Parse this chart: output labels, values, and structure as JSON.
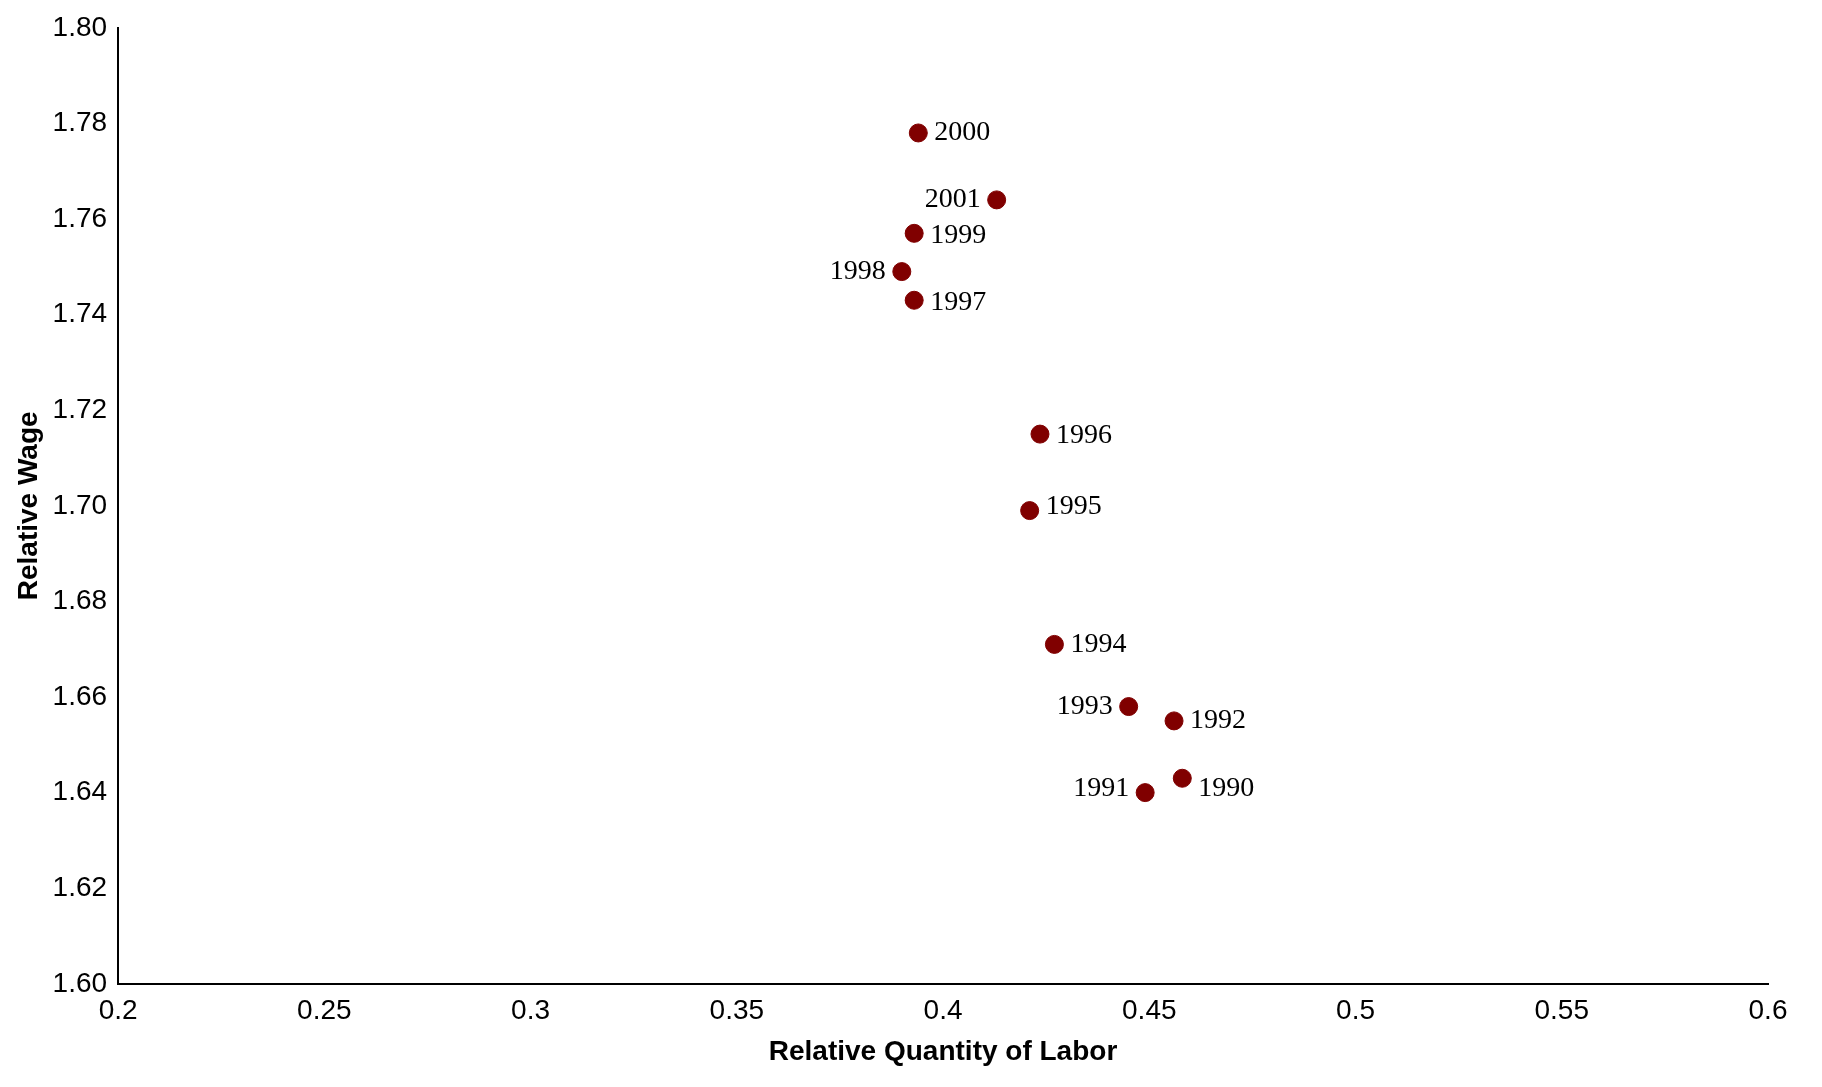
{
  "chart_data": {
    "type": "scatter",
    "xlabel": "Relative Quantity of Labor",
    "ylabel": "Relative Wage",
    "x": [
      0.458,
      0.449,
      0.456,
      0.445,
      0.427,
      0.421,
      0.4235,
      0.393,
      0.39,
      0.393,
      0.394,
      0.413
    ],
    "values": [
      1.643,
      1.64,
      1.655,
      1.658,
      1.671,
      1.699,
      1.715,
      1.743,
      1.749,
      1.757,
      1.778,
      1.764
    ],
    "annotations": [
      {
        "text": "1990",
        "x": 0.458,
        "y": 1.643
      },
      {
        "text": "1991",
        "x": 0.449,
        "y": 1.64
      },
      {
        "text": "1992",
        "x": 0.456,
        "y": 1.655
      },
      {
        "text": "1993",
        "x": 0.445,
        "y": 1.658
      },
      {
        "text": "1994",
        "x": 0.427,
        "y": 1.671
      },
      {
        "text": "1995",
        "x": 0.421,
        "y": 1.699
      },
      {
        "text": "1996",
        "x": 0.4235,
        "y": 1.715
      },
      {
        "text": "1997",
        "x": 0.393,
        "y": 1.743
      },
      {
        "text": "1998",
        "x": 0.39,
        "y": 1.749
      },
      {
        "text": "1999",
        "x": 0.393,
        "y": 1.757
      },
      {
        "text": "2000",
        "x": 0.394,
        "y": 1.778
      },
      {
        "text": "2001",
        "x": 0.413,
        "y": 1.764
      }
    ],
    "color": "#800000",
    "marker": "circle",
    "grid": false,
    "legend": false,
    "xlim": [
      0.2,
      0.6
    ],
    "xticks": [
      0.2,
      0.25,
      0.3,
      0.35,
      0.4,
      0.45,
      0.5,
      0.55,
      0.6
    ],
    "ylim": [
      1.6,
      1.8
    ],
    "yticks": [
      {
        "value": 1.6,
        "label": "1.60"
      },
      {
        "value": 1.62,
        "label": "1.62"
      },
      {
        "value": 1.64,
        "label": "1.64"
      },
      {
        "value": 1.66,
        "label": "1.66"
      },
      {
        "value": 1.68,
        "label": "1.68"
      },
      {
        "value": 1.7,
        "label": "1.70"
      },
      {
        "value": 1.72,
        "label": "1.72"
      },
      {
        "value": 1.74,
        "label": "1.74"
      },
      {
        "value": 1.76,
        "label": "1.76"
      },
      {
        "value": 1.78,
        "label": "1.78"
      },
      {
        "value": 1.8,
        "label": "1.80"
      }
    ]
  }
}
